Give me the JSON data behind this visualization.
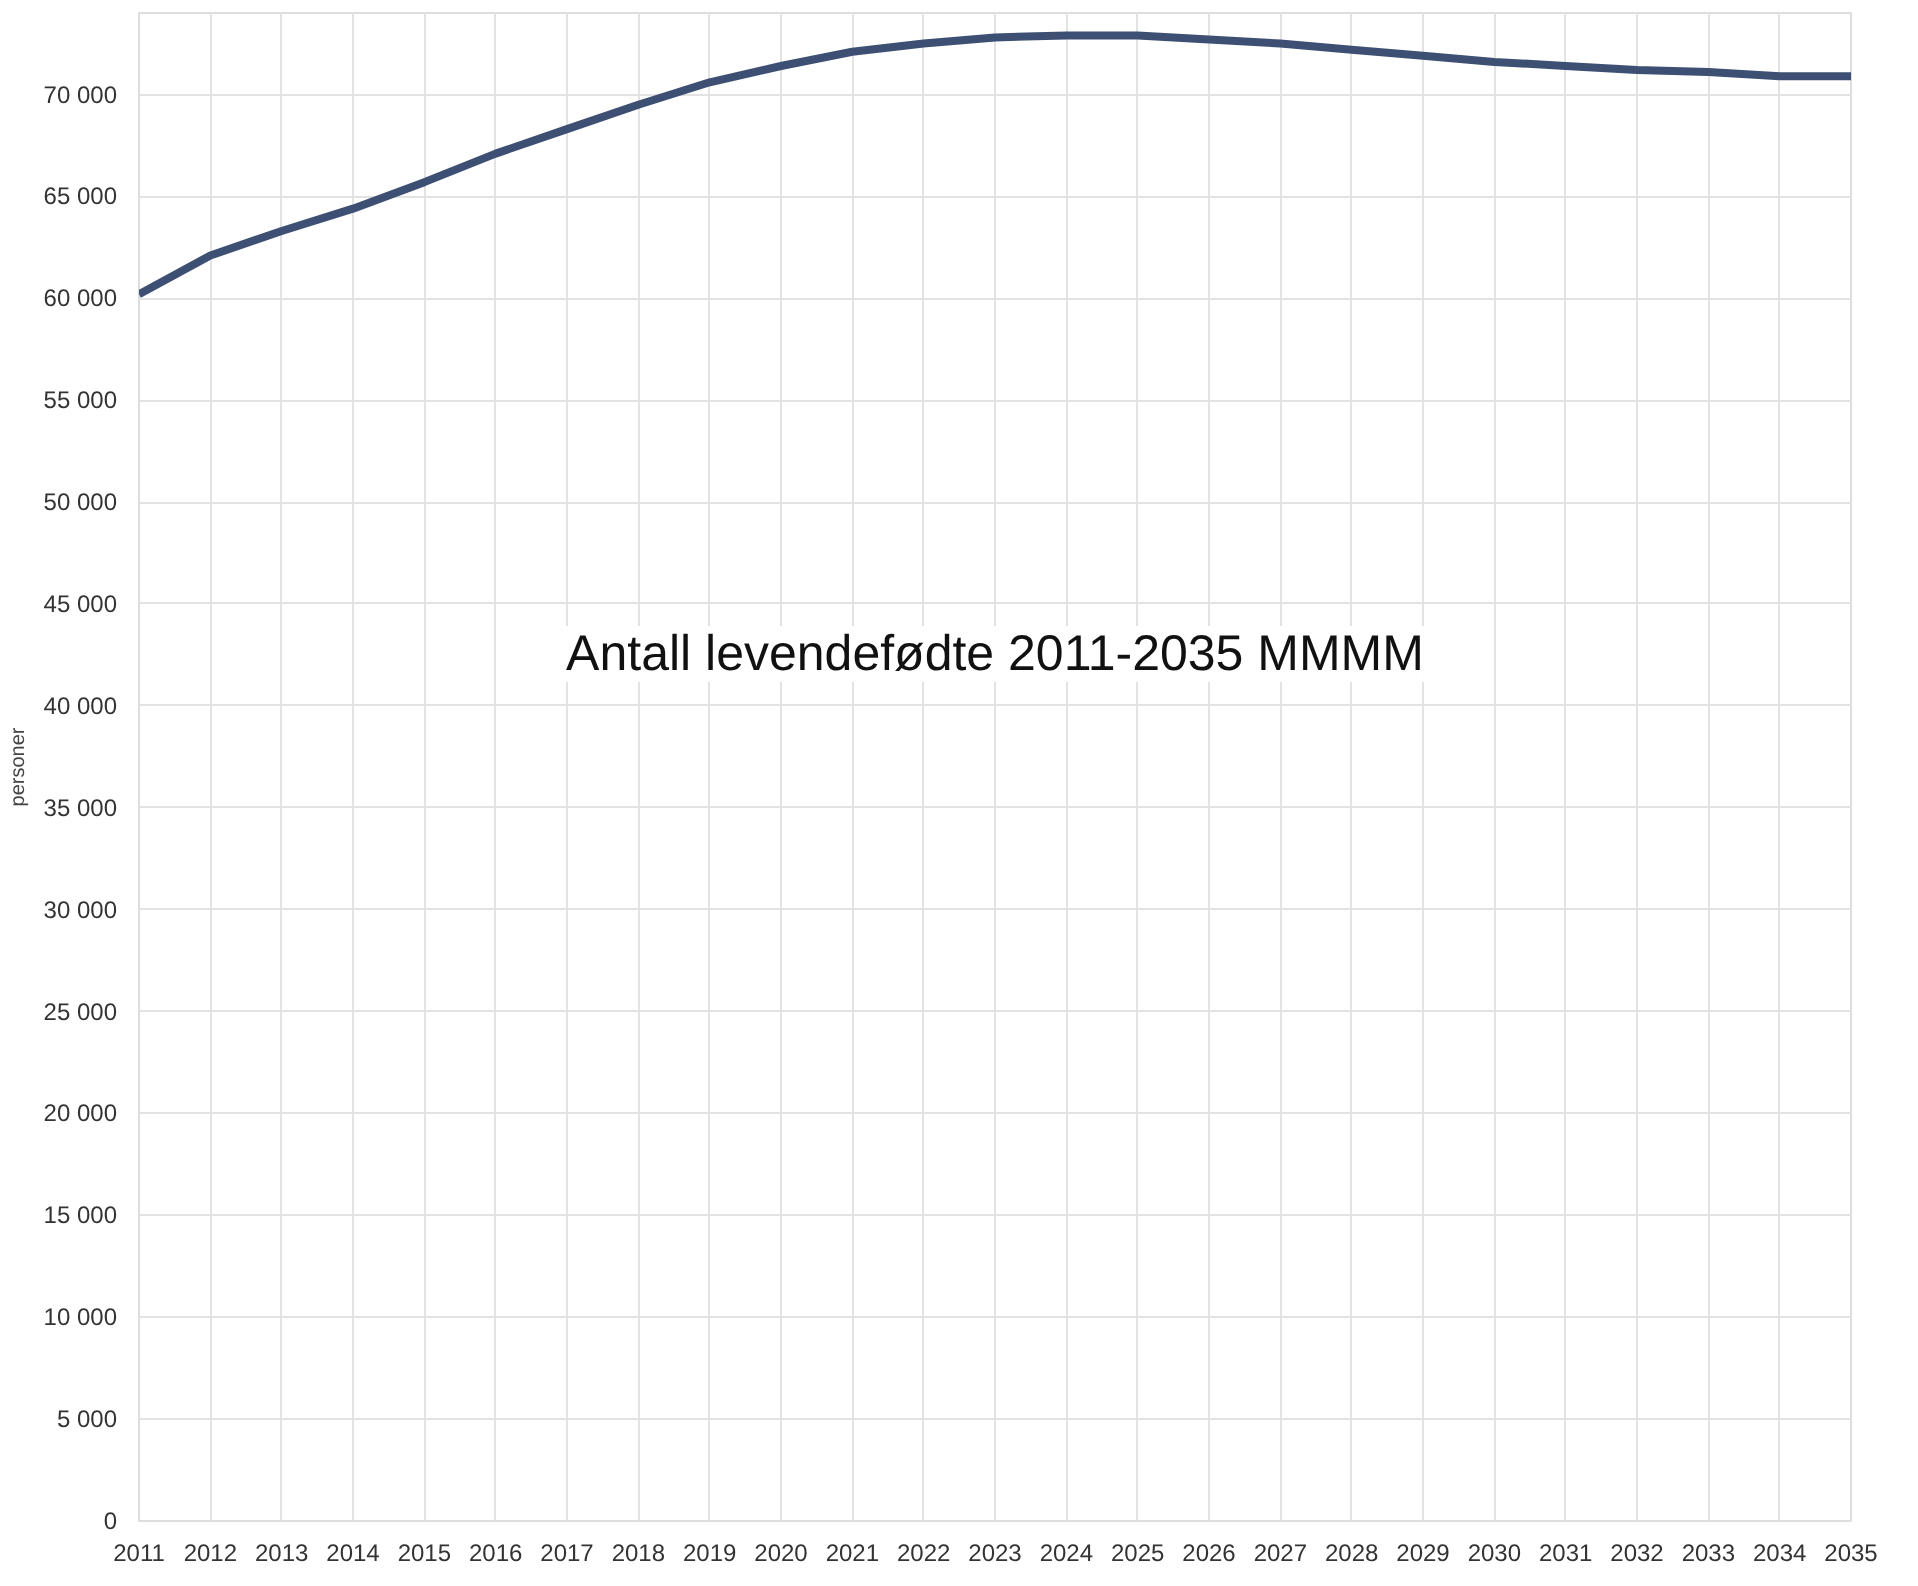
{
  "chart_data": {
    "type": "line",
    "title": "Antall levendefødte 2011-2035 MMMM",
    "ylabel": "personer",
    "x": [
      2011,
      2012,
      2013,
      2014,
      2015,
      2016,
      2017,
      2018,
      2019,
      2020,
      2021,
      2022,
      2023,
      2024,
      2025,
      2026,
      2027,
      2028,
      2029,
      2030,
      2031,
      2032,
      2033,
      2034,
      2035
    ],
    "series": [
      {
        "color": "#3d4f72",
        "values": [
          60200,
          62100,
          63300,
          64400,
          65700,
          67100,
          68300,
          69500,
          70600,
          71400,
          72100,
          72500,
          72800,
          72900,
          72900,
          72700,
          72500,
          72200,
          71900,
          71600,
          71400,
          71200,
          71100,
          70900,
          70900
        ]
      }
    ],
    "xlim": [
      2011,
      2035
    ],
    "ylim": [
      0,
      74000
    ],
    "xticks": [
      2011,
      2012,
      2013,
      2014,
      2015,
      2016,
      2017,
      2018,
      2019,
      2020,
      2021,
      2022,
      2023,
      2024,
      2025,
      2026,
      2027,
      2028,
      2029,
      2030,
      2031,
      2032,
      2033,
      2034,
      2035
    ],
    "yticks": [
      0,
      {
        "value": 5000,
        "label": "5 000"
      },
      {
        "value": 10000,
        "label": "10 000"
      },
      {
        "value": 15000,
        "label": "15 000"
      },
      {
        "value": 20000,
        "label": "20 000"
      },
      {
        "value": 25000,
        "label": "25 000"
      },
      {
        "value": 30000,
        "label": "30 000"
      },
      {
        "value": 35000,
        "label": "35 000"
      },
      {
        "value": 40000,
        "label": "40 000"
      },
      {
        "value": 45000,
        "label": "45 000"
      },
      {
        "value": 50000,
        "label": "50 000"
      },
      {
        "value": 55000,
        "label": "55 000"
      },
      {
        "value": 60000,
        "label": "60 000"
      },
      {
        "value": 65000,
        "label": "65 000"
      },
      {
        "value": 70000,
        "label": "70 000"
      }
    ],
    "grid": true,
    "marker": "none",
    "line_style": "solid"
  }
}
